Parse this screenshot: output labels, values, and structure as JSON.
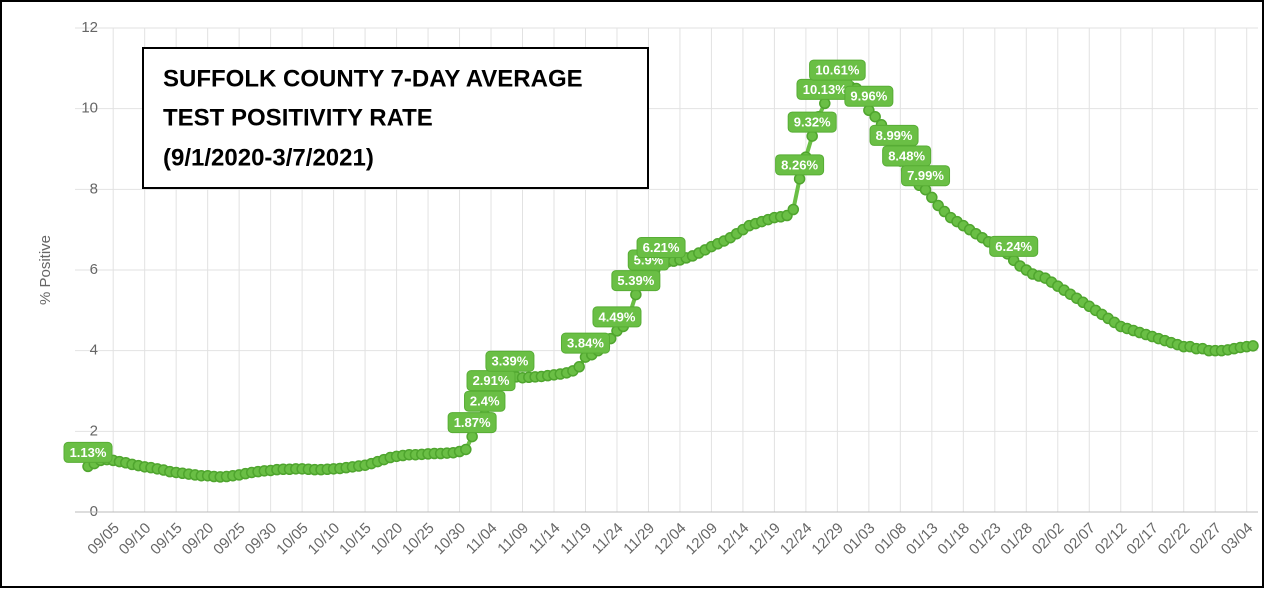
{
  "chart_data": {
    "type": "line",
    "annotation": [
      "SUFFOLK COUNTY 7-DAY AVERAGE",
      "TEST POSITIVITY RATE",
      "(9/1/2020-3/7/2021)"
    ],
    "y_label": "% Positive",
    "ylim": [
      0,
      12
    ],
    "yticks": [
      0,
      2,
      4,
      6,
      8,
      10,
      12
    ],
    "grid": true,
    "categories": [
      null,
      null,
      null,
      null,
      "09/05",
      null,
      null,
      null,
      null,
      "09/10",
      null,
      null,
      null,
      null,
      "09/15",
      null,
      null,
      null,
      null,
      "09/20",
      null,
      null,
      null,
      null,
      "09/25",
      null,
      null,
      null,
      null,
      "09/30",
      null,
      null,
      null,
      null,
      "10/05",
      null,
      null,
      null,
      null,
      "10/10",
      null,
      null,
      null,
      null,
      "10/15",
      null,
      null,
      null,
      null,
      "10/20",
      null,
      null,
      null,
      null,
      "10/25",
      null,
      null,
      null,
      null,
      "10/30",
      null,
      null,
      null,
      null,
      "11/04",
      null,
      null,
      null,
      null,
      "11/09",
      null,
      null,
      null,
      null,
      "11/14",
      null,
      null,
      null,
      null,
      "11/19",
      null,
      null,
      null,
      null,
      "11/24",
      null,
      null,
      null,
      null,
      "11/29",
      null,
      null,
      null,
      null,
      "12/04",
      null,
      null,
      null,
      null,
      "12/09",
      null,
      null,
      null,
      null,
      "12/14",
      null,
      null,
      null,
      null,
      "12/19",
      null,
      null,
      null,
      null,
      "12/24",
      null,
      null,
      null,
      null,
      "12/29",
      null,
      null,
      null,
      null,
      "01/03",
      null,
      null,
      null,
      null,
      "01/08",
      null,
      null,
      null,
      null,
      "01/13",
      null,
      null,
      null,
      null,
      "01/18",
      null,
      null,
      null,
      null,
      "01/23",
      null,
      null,
      null,
      null,
      "01/28",
      null,
      null,
      null,
      null,
      "02/02",
      null,
      null,
      null,
      null,
      "02/07",
      null,
      null,
      null,
      null,
      "02/12",
      null,
      null,
      null,
      null,
      "02/17",
      null,
      null,
      null,
      null,
      "02/22",
      null,
      null,
      null,
      null,
      "02/27",
      null,
      null,
      null,
      null,
      "03/04",
      null
    ],
    "series": [
      {
        "name": "% Positive",
        "color": "#6abf45",
        "values": [
          1.13,
          1.2,
          1.28,
          1.3,
          1.28,
          1.25,
          1.22,
          1.18,
          1.15,
          1.12,
          1.1,
          1.07,
          1.04,
          1.0,
          0.98,
          0.96,
          0.94,
          0.92,
          0.9,
          0.9,
          0.88,
          0.87,
          0.88,
          0.9,
          0.92,
          0.95,
          0.98,
          1.0,
          1.02,
          1.03,
          1.05,
          1.06,
          1.06,
          1.07,
          1.07,
          1.06,
          1.05,
          1.05,
          1.06,
          1.07,
          1.08,
          1.1,
          1.12,
          1.14,
          1.16,
          1.2,
          1.25,
          1.3,
          1.35,
          1.38,
          1.4,
          1.42,
          1.42,
          1.43,
          1.44,
          1.45,
          1.45,
          1.46,
          1.47,
          1.5,
          1.55,
          1.87,
          2.1,
          2.4,
          2.91,
          3.1,
          3.2,
          3.39,
          3.35,
          3.33,
          3.34,
          3.35,
          3.36,
          3.38,
          3.4,
          3.42,
          3.45,
          3.5,
          3.6,
          3.84,
          3.9,
          4.0,
          4.1,
          4.3,
          4.49,
          4.6,
          4.9,
          5.39,
          5.7,
          5.9,
          6.0,
          6.21,
          6.2,
          6.22,
          6.25,
          6.3,
          6.35,
          6.42,
          6.5,
          6.58,
          6.65,
          6.72,
          6.8,
          6.9,
          7.0,
          7.1,
          7.15,
          7.2,
          7.25,
          7.3,
          7.32,
          7.35,
          7.5,
          8.26,
          8.8,
          9.32,
          9.8,
          10.13,
          10.4,
          10.61,
          10.6,
          10.55,
          10.5,
          10.3,
          9.96,
          9.8,
          9.6,
          9.3,
          8.99,
          8.7,
          8.48,
          8.3,
          8.1,
          7.99,
          7.8,
          7.6,
          7.45,
          7.3,
          7.2,
          7.1,
          7.0,
          6.9,
          6.8,
          6.7,
          6.6,
          6.5,
          6.4,
          6.24,
          6.1,
          6.0,
          5.9,
          5.85,
          5.8,
          5.7,
          5.6,
          5.5,
          5.4,
          5.3,
          5.2,
          5.1,
          5.0,
          4.9,
          4.8,
          4.7,
          4.6,
          4.55,
          4.5,
          4.45,
          4.4,
          4.35,
          4.3,
          4.25,
          4.2,
          4.15,
          4.1,
          4.1,
          4.05,
          4.05,
          4.0,
          4.0,
          4.0,
          4.02,
          4.05,
          4.08,
          4.1,
          4.12
        ],
        "value_labels": [
          "1.13%",
          null,
          null,
          null,
          null,
          null,
          null,
          null,
          null,
          null,
          null,
          null,
          null,
          null,
          null,
          null,
          null,
          null,
          null,
          null,
          null,
          null,
          null,
          null,
          null,
          null,
          null,
          null,
          null,
          null,
          null,
          null,
          null,
          null,
          null,
          null,
          null,
          null,
          null,
          null,
          null,
          null,
          null,
          null,
          null,
          null,
          null,
          null,
          null,
          null,
          null,
          null,
          null,
          null,
          null,
          null,
          null,
          null,
          null,
          null,
          null,
          "1.87%",
          null,
          "2.4%",
          "2.91%",
          null,
          null,
          "3.39%",
          null,
          null,
          null,
          null,
          null,
          null,
          null,
          null,
          null,
          null,
          null,
          "3.84%",
          null,
          null,
          null,
          null,
          "4.49%",
          null,
          null,
          "5.39%",
          null,
          "5.9%",
          null,
          "6.21%",
          null,
          null,
          null,
          null,
          null,
          null,
          null,
          null,
          null,
          null,
          null,
          null,
          null,
          null,
          null,
          null,
          null,
          null,
          null,
          null,
          null,
          "8.26%",
          null,
          "9.32%",
          null,
          "10.13%",
          null,
          "10.61%",
          null,
          null,
          null,
          null,
          "9.96%",
          null,
          null,
          null,
          "8.99%",
          null,
          "8.48%",
          null,
          null,
          "7.99%",
          null,
          null,
          null,
          null,
          null,
          null,
          null,
          null,
          null,
          null,
          null,
          null,
          null,
          "6.24%",
          null,
          null,
          null,
          null,
          null,
          null,
          null,
          null,
          null,
          null,
          null,
          null,
          null,
          null,
          null,
          null,
          null,
          null,
          null,
          null,
          null,
          null,
          null,
          null,
          null,
          null,
          null,
          null,
          null,
          null,
          null,
          null,
          null,
          null,
          null,
          null,
          null,
          null
        ]
      }
    ]
  }
}
